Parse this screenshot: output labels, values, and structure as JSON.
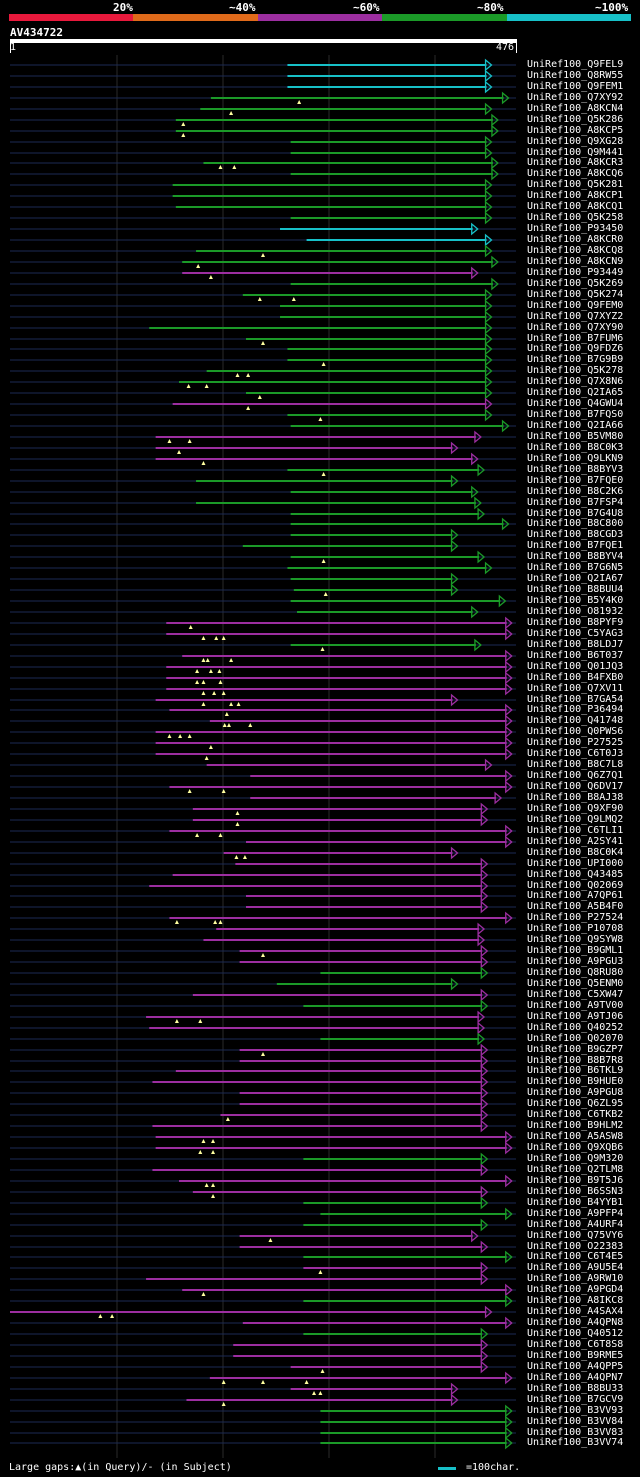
{
  "legend": {
    "items": [
      {
        "label": "20%",
        "color": "#e8193c"
      },
      {
        "label": "~40%",
        "color": "#e06a1a"
      },
      {
        "label": "~60%",
        "color": "#9c2ea0"
      },
      {
        "label": "~80%",
        "color": "#1b9a28"
      },
      {
        "label": "~100%",
        "color": "#17c0c8"
      }
    ]
  },
  "query": {
    "name": "AV434722",
    "start": "1",
    "end": "476",
    "length": 476
  },
  "hits": [
    {
      "id": "UniRef100_Q9FEL9",
      "color": "c",
      "s": 261,
      "e": 453,
      "tris": []
    },
    {
      "id": "UniRef100_Q8RW55",
      "color": "c",
      "s": 261,
      "e": 453,
      "tris": []
    },
    {
      "id": "UniRef100_Q9FEM1",
      "color": "c",
      "s": 261,
      "e": 453,
      "tris": []
    },
    {
      "id": "UniRef100_Q7XY92",
      "color": "g",
      "s": 189,
      "e": 469,
      "tris": [
        272
      ]
    },
    {
      "id": "UniRef100_A8KCN4",
      "color": "g",
      "s": 179,
      "e": 453,
      "tris": [
        208
      ]
    },
    {
      "id": "UniRef100_Q5K286",
      "color": "g",
      "s": 156,
      "e": 459,
      "tris": [
        163
      ]
    },
    {
      "id": "UniRef100_A8KCP5",
      "color": "g",
      "s": 156,
      "e": 459,
      "tris": [
        163
      ]
    },
    {
      "id": "UniRef100_Q9XG28",
      "color": "g",
      "s": 264,
      "e": 453,
      "tris": []
    },
    {
      "id": "UniRef100_Q9M441",
      "color": "g",
      "s": 264,
      "e": 453,
      "tris": []
    },
    {
      "id": "UniRef100_A8KCR3",
      "color": "g",
      "s": 182,
      "e": 459,
      "tris": [
        198,
        211
      ]
    },
    {
      "id": "UniRef100_A8KCQ6",
      "color": "g",
      "s": 264,
      "e": 459,
      "tris": []
    },
    {
      "id": "UniRef100_Q5K281",
      "color": "g",
      "s": 153,
      "e": 453,
      "tris": []
    },
    {
      "id": "UniRef100_A8KCP1",
      "color": "g",
      "s": 153,
      "e": 453,
      "tris": []
    },
    {
      "id": "UniRef100_A8KCQ1",
      "color": "g",
      "s": 156,
      "e": 453,
      "tris": []
    },
    {
      "id": "UniRef100_Q5K258",
      "color": "g",
      "s": 264,
      "e": 453,
      "tris": []
    },
    {
      "id": "UniRef100_P93450",
      "color": "c",
      "s": 254,
      "e": 440,
      "tris": []
    },
    {
      "id": "UniRef100_A8KCR0",
      "color": "c",
      "s": 279,
      "e": 453,
      "tris": []
    },
    {
      "id": "UniRef100_A8KCQ8",
      "color": "g",
      "s": 175,
      "e": 453,
      "tris": [
        238
      ]
    },
    {
      "id": "UniRef100_A8KCN9",
      "color": "g",
      "s": 162,
      "e": 459,
      "tris": [
        177
      ]
    },
    {
      "id": "UniRef100_P93449",
      "color": "p",
      "s": 162,
      "e": 440,
      "tris": [
        189
      ]
    },
    {
      "id": "UniRef100_Q5K269",
      "color": "g",
      "s": 264,
      "e": 459,
      "tris": []
    },
    {
      "id": "UniRef100_Q5K274",
      "color": "g",
      "s": 219,
      "e": 453,
      "tris": [
        235,
        267
      ]
    },
    {
      "id": "UniRef100_Q9FEM0",
      "color": "g",
      "s": 254,
      "e": 453,
      "tris": []
    },
    {
      "id": "UniRef100_Q7XYZ2",
      "color": "g",
      "s": 254,
      "e": 453,
      "tris": []
    },
    {
      "id": "UniRef100_Q7XY90",
      "color": "g",
      "s": 131,
      "e": 453,
      "tris": []
    },
    {
      "id": "UniRef100_B7FUM6",
      "color": "g",
      "s": 222,
      "e": 453,
      "tris": [
        238
      ]
    },
    {
      "id": "UniRef100_Q9FDZ6",
      "color": "g",
      "s": 261,
      "e": 453,
      "tris": []
    },
    {
      "id": "UniRef100_B7G9B9",
      "color": "g",
      "s": 261,
      "e": 453,
      "tris": [
        295
      ]
    },
    {
      "id": "UniRef100_Q5K278",
      "color": "g",
      "s": 185,
      "e": 453,
      "tris": [
        214,
        224
      ]
    },
    {
      "id": "UniRef100_Q7X8N6",
      "color": "g",
      "s": 159,
      "e": 453,
      "tris": [
        168,
        185
      ]
    },
    {
      "id": "UniRef100_Q2IA65",
      "color": "g",
      "s": 222,
      "e": 453,
      "tris": [
        235
      ]
    },
    {
      "id": "UniRef100_Q4GWU4",
      "color": "p",
      "s": 153,
      "e": 453,
      "tris": [
        224
      ]
    },
    {
      "id": "UniRef100_B7FQS0",
      "color": "g",
      "s": 261,
      "e": 453,
      "tris": [
        292
      ]
    },
    {
      "id": "UniRef100_Q2IA66",
      "color": "g",
      "s": 264,
      "e": 469,
      "tris": []
    },
    {
      "id": "UniRef100_B5VM80",
      "color": "p",
      "s": 137,
      "e": 443,
      "tris": [
        150,
        169
      ]
    },
    {
      "id": "UniRef100_B8C0K3",
      "color": "p",
      "s": 137,
      "e": 421,
      "tris": [
        159
      ]
    },
    {
      "id": "UniRef100_Q9LKN9",
      "color": "p",
      "s": 137,
      "e": 440,
      "tris": [
        182
      ]
    },
    {
      "id": "UniRef100_B8BYV3",
      "color": "g",
      "s": 261,
      "e": 446,
      "tris": [
        295
      ]
    },
    {
      "id": "UniRef100_B7FQE0",
      "color": "g",
      "s": 175,
      "e": 421,
      "tris": []
    },
    {
      "id": "UniRef100_B8C2K6",
      "color": "g",
      "s": 264,
      "e": 440,
      "tris": []
    },
    {
      "id": "UniRef100_B7FSP4",
      "color": "g",
      "s": 175,
      "e": 443,
      "tris": []
    },
    {
      "id": "UniRef100_B7G4U8",
      "color": "g",
      "s": 264,
      "e": 446,
      "tris": []
    },
    {
      "id": "UniRef100_B8C800",
      "color": "g",
      "s": 264,
      "e": 469,
      "tris": []
    },
    {
      "id": "UniRef100_B8CGD3",
      "color": "g",
      "s": 264,
      "e": 421,
      "tris": []
    },
    {
      "id": "UniRef100_B7FQE1",
      "color": "g",
      "s": 219,
      "e": 421,
      "tris": []
    },
    {
      "id": "UniRef100_B8BYV4",
      "color": "g",
      "s": 264,
      "e": 446,
      "tris": [
        295
      ]
    },
    {
      "id": "UniRef100_B7G6N5",
      "color": "g",
      "s": 261,
      "e": 453,
      "tris": []
    },
    {
      "id": "UniRef100_Q2IA67",
      "color": "g",
      "s": 264,
      "e": 421,
      "tris": []
    },
    {
      "id": "UniRef100_B8BUU4",
      "color": "g",
      "s": 267,
      "e": 421,
      "tris": [
        297
      ]
    },
    {
      "id": "UniRef100_B5Y4K0",
      "color": "g",
      "s": 264,
      "e": 466,
      "tris": []
    },
    {
      "id": "UniRef100_O81932",
      "color": "g",
      "s": 270,
      "e": 440,
      "tris": []
    },
    {
      "id": "UniRef100_B8PYF9",
      "color": "p",
      "s": 147,
      "e": 472,
      "tris": [
        170
      ]
    },
    {
      "id": "UniRef100_C5YAG3",
      "color": "p",
      "s": 147,
      "e": 472,
      "tris": [
        182,
        194,
        201
      ]
    },
    {
      "id": "UniRef100_B8LDJ7",
      "color": "g",
      "s": 264,
      "e": 443,
      "tris": [
        294
      ]
    },
    {
      "id": "UniRef100_B6T037",
      "color": "p",
      "s": 162,
      "e": 472,
      "tris": [
        182,
        186,
        208
      ]
    },
    {
      "id": "UniRef100_Q01JQ3",
      "color": "p",
      "s": 147,
      "e": 472,
      "tris": [
        176,
        189,
        197
      ]
    },
    {
      "id": "UniRef100_B4FXB0",
      "color": "p",
      "s": 147,
      "e": 472,
      "tris": [
        176,
        182,
        198
      ]
    },
    {
      "id": "UniRef100_Q7XV11",
      "color": "p",
      "s": 147,
      "e": 472,
      "tris": [
        182,
        192,
        201
      ]
    },
    {
      "id": "UniRef100_B7GA54",
      "color": "p",
      "s": 137,
      "e": 421,
      "tris": [
        182,
        208,
        215
      ]
    },
    {
      "id": "UniRef100_P36494",
      "color": "p",
      "s": 150,
      "e": 472,
      "tris": [
        204
      ]
    },
    {
      "id": "UniRef100_Q41748",
      "color": "p",
      "s": 188,
      "e": 472,
      "tris": [
        202,
        206,
        226
      ]
    },
    {
      "id": "UniRef100_Q0PWS6",
      "color": "p",
      "s": 137,
      "e": 472,
      "tris": [
        150,
        160,
        169
      ]
    },
    {
      "id": "UniRef100_P27525",
      "color": "p",
      "s": 137,
      "e": 472,
      "tris": [
        189
      ]
    },
    {
      "id": "UniRef100_C6T0J3",
      "color": "p",
      "s": 137,
      "e": 472,
      "tris": [
        185
      ]
    },
    {
      "id": "UniRef100_B8C7L8",
      "color": "p",
      "s": 185,
      "e": 453,
      "tris": []
    },
    {
      "id": "UniRef100_Q6Z7Q1",
      "color": "p",
      "s": 226,
      "e": 472,
      "tris": []
    },
    {
      "id": "UniRef100_Q6DV17",
      "color": "p",
      "s": 150,
      "e": 472,
      "tris": [
        169,
        201
      ]
    },
    {
      "id": "UniRef100_B8AJ38",
      "color": "p",
      "s": 226,
      "e": 462,
      "tris": []
    },
    {
      "id": "UniRef100_Q9XF90",
      "color": "p",
      "s": 172,
      "e": 449,
      "tris": [
        214
      ]
    },
    {
      "id": "UniRef100_Q9LMQ2",
      "color": "p",
      "s": 172,
      "e": 449,
      "tris": [
        214
      ]
    },
    {
      "id": "UniRef100_C6TLI1",
      "color": "p",
      "s": 150,
      "e": 472,
      "tris": [
        176,
        198
      ]
    },
    {
      "id": "UniRef100_A2SY41",
      "color": "p",
      "s": 222,
      "e": 472,
      "tris": []
    },
    {
      "id": "UniRef100_B8C0K4",
      "color": "p",
      "s": 201,
      "e": 421,
      "tris": [
        213,
        221
      ]
    },
    {
      "id": "UniRef100_UPI000",
      "color": "p",
      "s": 212,
      "e": 449,
      "tris": []
    },
    {
      "id": "UniRef100_Q43485",
      "color": "p",
      "s": 153,
      "e": 449,
      "tris": []
    },
    {
      "id": "UniRef100_Q02069",
      "color": "p",
      "s": 131,
      "e": 449,
      "tris": []
    },
    {
      "id": "UniRef100_A7QP61",
      "color": "p",
      "s": 222,
      "e": 449,
      "tris": []
    },
    {
      "id": "UniRef100_A5B4F0",
      "color": "p",
      "s": 222,
      "e": 449,
      "tris": []
    },
    {
      "id": "UniRef100_P27524",
      "color": "p",
      "s": 150,
      "e": 472,
      "tris": [
        157,
        193,
        198
      ]
    },
    {
      "id": "UniRef100_P10708",
      "color": "p",
      "s": 194,
      "e": 446,
      "tris": []
    },
    {
      "id": "UniRef100_Q9SYW8",
      "color": "p",
      "s": 182,
      "e": 446,
      "tris": []
    },
    {
      "id": "UniRef100_B9GML1",
      "color": "p",
      "s": 216,
      "e": 449,
      "tris": [
        238
      ]
    },
    {
      "id": "UniRef100_A9PGU3",
      "color": "p",
      "s": 216,
      "e": 449,
      "tris": []
    },
    {
      "id": "UniRef100_Q8RU80",
      "color": "g",
      "s": 292,
      "e": 449,
      "tris": []
    },
    {
      "id": "UniRef100_Q5ENM0",
      "color": "g",
      "s": 251,
      "e": 421,
      "tris": []
    },
    {
      "id": "UniRef100_C5XW47",
      "color": "p",
      "s": 172,
      "e": 449,
      "tris": []
    },
    {
      "id": "UniRef100_A9TV00",
      "color": "g",
      "s": 276,
      "e": 449,
      "tris": []
    },
    {
      "id": "UniRef100_A9TJ06",
      "color": "p",
      "s": 128,
      "e": 446,
      "tris": [
        157,
        179
      ]
    },
    {
      "id": "UniRef100_Q40252",
      "color": "p",
      "s": 131,
      "e": 446,
      "tris": []
    },
    {
      "id": "UniRef100_Q02070",
      "color": "g",
      "s": 292,
      "e": 446,
      "tris": []
    },
    {
      "id": "UniRef100_B9GZP7",
      "color": "p",
      "s": 216,
      "e": 449,
      "tris": [
        238
      ]
    },
    {
      "id": "UniRef100_B8B7R8",
      "color": "p",
      "s": 216,
      "e": 449,
      "tris": []
    },
    {
      "id": "UniRef100_B6TKL9",
      "color": "p",
      "s": 156,
      "e": 449,
      "tris": []
    },
    {
      "id": "UniRef100_B9HUE0",
      "color": "p",
      "s": 134,
      "e": 449,
      "tris": []
    },
    {
      "id": "UniRef100_A9PGU8",
      "color": "p",
      "s": 216,
      "e": 449,
      "tris": []
    },
    {
      "id": "UniRef100_Q6ZL95",
      "color": "p",
      "s": 216,
      "e": 449,
      "tris": []
    },
    {
      "id": "UniRef100_C6TKB2",
      "color": "p",
      "s": 198,
      "e": 449,
      "tris": [
        205
      ]
    },
    {
      "id": "UniRef100_B9HLM2",
      "color": "p",
      "s": 134,
      "e": 449,
      "tris": []
    },
    {
      "id": "UniRef100_A5ASW8",
      "color": "p",
      "s": 137,
      "e": 472,
      "tris": [
        182,
        191
      ]
    },
    {
      "id": "UniRef100_Q9XQB6",
      "color": "p",
      "s": 137,
      "e": 472,
      "tris": [
        179,
        191
      ]
    },
    {
      "id": "UniRef100_Q9M320",
      "color": "g",
      "s": 276,
      "e": 449,
      "tris": []
    },
    {
      "id": "UniRef100_Q2TLM8",
      "color": "p",
      "s": 134,
      "e": 449,
      "tris": []
    },
    {
      "id": "UniRef100_B9T5J6",
      "color": "p",
      "s": 159,
      "e": 472,
      "tris": [
        185,
        191
      ]
    },
    {
      "id": "UniRef100_B6SSN3",
      "color": "p",
      "s": 172,
      "e": 449,
      "tris": [
        191
      ]
    },
    {
      "id": "UniRef100_B4YYB1",
      "color": "g",
      "s": 276,
      "e": 449,
      "tris": []
    },
    {
      "id": "UniRef100_A9PFP4",
      "color": "g",
      "s": 292,
      "e": 472,
      "tris": []
    },
    {
      "id": "UniRef100_A4URF4",
      "color": "g",
      "s": 276,
      "e": 449,
      "tris": []
    },
    {
      "id": "UniRef100_Q75VY6",
      "color": "p",
      "s": 216,
      "e": 440,
      "tris": [
        245
      ]
    },
    {
      "id": "UniRef100_O22383",
      "color": "p",
      "s": 216,
      "e": 449,
      "tris": []
    },
    {
      "id": "UniRef100_C6T4E5",
      "color": "g",
      "s": 276,
      "e": 472,
      "tris": []
    },
    {
      "id": "UniRef100_A9U5E4",
      "color": "p",
      "s": 276,
      "e": 449,
      "tris": [
        292
      ]
    },
    {
      "id": "UniRef100_A9RW10",
      "color": "p",
      "s": 128,
      "e": 449,
      "tris": []
    },
    {
      "id": "UniRef100_A9PGD4",
      "color": "p",
      "s": 162,
      "e": 472,
      "tris": [
        182
      ]
    },
    {
      "id": "UniRef100_A8IKC8",
      "color": "g",
      "s": 276,
      "e": 472,
      "tris": []
    },
    {
      "id": "UniRef100_A4SAX4",
      "color": "p",
      "s": 0,
      "e": 453,
      "tris": [
        85,
        96
      ]
    },
    {
      "id": "UniRef100_A4QPN8",
      "color": "p",
      "s": 219,
      "e": 472,
      "tris": []
    },
    {
      "id": "UniRef100_Q40512",
      "color": "g",
      "s": 276,
      "e": 449,
      "tris": []
    },
    {
      "id": "UniRef100_C6T8S8",
      "color": "p",
      "s": 210,
      "e": 449,
      "tris": []
    },
    {
      "id": "UniRef100_B9RME5",
      "color": "p",
      "s": 210,
      "e": 449,
      "tris": []
    },
    {
      "id": "UniRef100_A4QPP5",
      "color": "p",
      "s": 264,
      "e": 449,
      "tris": [
        294
      ]
    },
    {
      "id": "UniRef100_A4QPN7",
      "color": "p",
      "s": 188,
      "e": 472,
      "tris": [
        201,
        238,
        279
      ]
    },
    {
      "id": "UniRef100_B8BU33",
      "color": "p",
      "s": 264,
      "e": 421,
      "tris": [
        286,
        292
      ]
    },
    {
      "id": "UniRef100_B7GCV9",
      "color": "p",
      "s": 166,
      "e": 421,
      "tris": [
        201
      ]
    },
    {
      "id": "UniRef100_B3VV93",
      "color": "g",
      "s": 292,
      "e": 472,
      "tris": []
    },
    {
      "id": "UniRef100_B3VV84",
      "color": "g",
      "s": 292,
      "e": 472,
      "tris": []
    },
    {
      "id": "UniRef100_B3VV83",
      "color": "g",
      "s": 292,
      "e": 472,
      "tris": []
    },
    {
      "id": "UniRef100_B3VV74",
      "color": "g",
      "s": 292,
      "e": 472,
      "tris": []
    }
  ],
  "colors": {
    "c": "#17c0c8",
    "g": "#1b9a28",
    "p": "#9c2ea0",
    "track": "#1c2a55",
    "grid": "#2a2a2a"
  },
  "footer": {
    "gaps_text": "Large gaps:▲(in Query)/- (in Subject)",
    "scale_text": "=100char."
  }
}
